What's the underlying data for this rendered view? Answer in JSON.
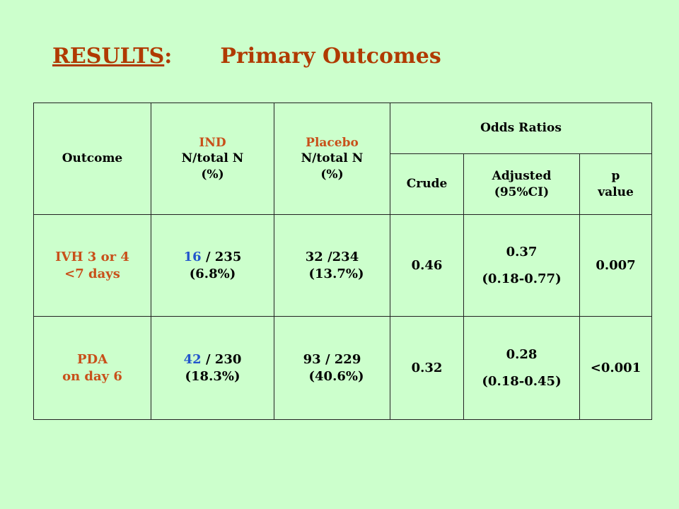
{
  "title": {
    "results": "RESULTS",
    "colon": ":",
    "subtitle": "Primary Outcomes"
  },
  "table": {
    "header": {
      "outcome": "Outcome",
      "ind_name": "IND",
      "ind_sub1": "N/total N",
      "ind_sub2": "(%)",
      "placebo_name": "Placebo",
      "placebo_sub1": "N/total N",
      "placebo_sub2": "(%)",
      "odds_ratios": "Odds Ratios",
      "crude": "Crude",
      "adjusted_line1": "Adjusted",
      "adjusted_line2": "(95%CI)",
      "p_line1": "p",
      "p_line2": "value"
    },
    "rows": [
      {
        "outcome_line1": "IVH 3 or 4",
        "outcome_line2": "<7 days",
        "ind_n": "16",
        "ind_rest": "/ 235",
        "ind_pct": "(6.8%)",
        "placebo_line1": "32 /234",
        "placebo_line2": "(13.7%)",
        "crude": "0.46",
        "adjusted": "0.37",
        "adjusted_ci": "(0.18-0.77)",
        "p_value": "0.007"
      },
      {
        "outcome_line1": "PDA",
        "outcome_line2": "on day 6",
        "ind_n": "42",
        "ind_rest": "/ 230",
        "ind_pct": "(18.3%)",
        "placebo_line1": "93 / 229",
        "placebo_line2": "(40.6%)",
        "crude": "0.32",
        "adjusted": "0.28",
        "adjusted_ci": "(0.18-0.45)",
        "p_value": "<0.001"
      }
    ]
  },
  "colors": {
    "background": "#ccffcc",
    "title": "#b03a00",
    "highlight_red": "#c8501a",
    "highlight_blue": "#2255cc"
  }
}
